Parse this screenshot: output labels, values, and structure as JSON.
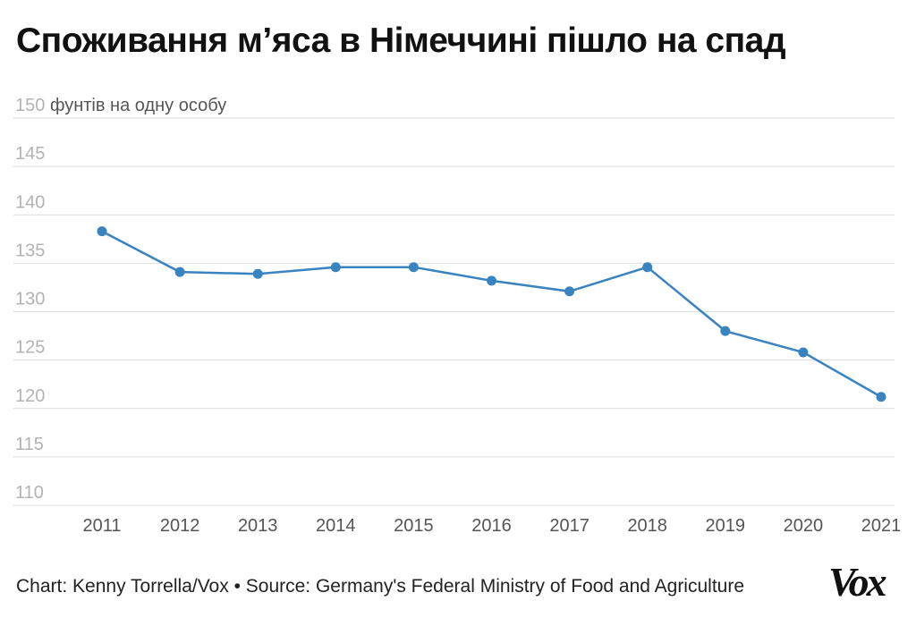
{
  "page": {
    "title": "Споживання м’яса в Німеччині пішло на спад",
    "source": "Chart: Kenny Torrella/Vox • Source: Germany's Federal Ministry of Food and Agriculture",
    "logo_text": "Vox"
  },
  "colors": {
    "line": "#3a83c1",
    "grid": "#dddddd",
    "title": "#111111"
  },
  "chart_data": {
    "type": "line",
    "title": "Споживання м’яса в Німеччині пішло на спад",
    "unit_label": "фунтів на одну особу",
    "x": [
      "2011",
      "2012",
      "2013",
      "2014",
      "2015",
      "2016",
      "2017",
      "2018",
      "2019",
      "2020",
      "2021"
    ],
    "series": [
      {
        "values": [
          138.3,
          134.1,
          133.9,
          134.6,
          134.6,
          133.2,
          132.1,
          134.6,
          128.0,
          125.8,
          121.2
        ]
      }
    ],
    "ylim": [
      110,
      150
    ],
    "yticks": [
      110,
      115,
      120,
      125,
      130,
      135,
      140,
      145,
      150
    ],
    "grid": true,
    "legend": "none"
  }
}
